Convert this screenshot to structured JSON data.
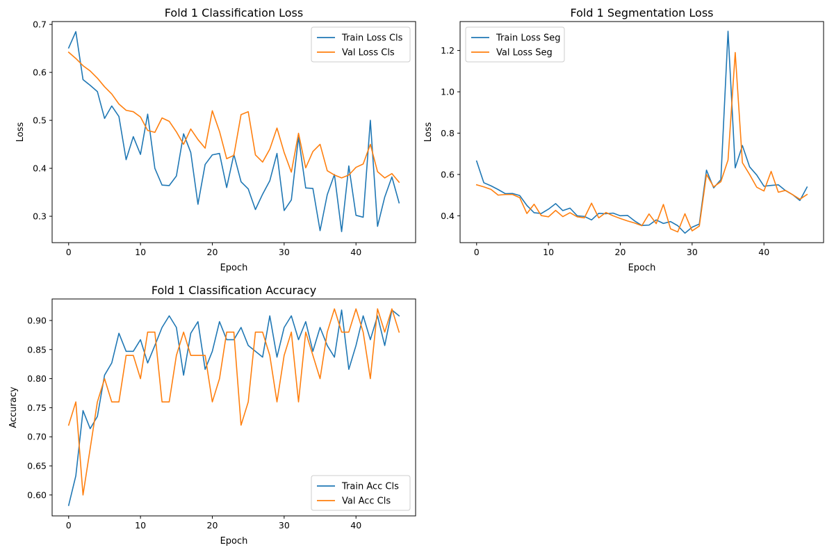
{
  "colors": {
    "train": "#1f77b4",
    "val": "#ff7f0e"
  },
  "chart_data": [
    {
      "type": "line",
      "title": "Fold 1 Classification Loss",
      "xlabel": "Epoch",
      "ylabel": "Loss",
      "xlim": [
        -2.3,
        48.3
      ],
      "ylim": [
        0.245,
        0.706
      ],
      "xticks": [
        0,
        10,
        20,
        30,
        40
      ],
      "yticks": [
        0.3,
        0.4,
        0.5,
        0.6,
        0.7
      ],
      "ytick_labels": [
        "0.3",
        "0.4",
        "0.5",
        "0.6",
        "0.7"
      ],
      "legend_position": "top-right",
      "series": [
        {
          "name": "Train Loss Cls",
          "color": "#1f77b4",
          "values": [
            0.651,
            0.685,
            0.585,
            0.573,
            0.56,
            0.504,
            0.53,
            0.508,
            0.418,
            0.466,
            0.429,
            0.513,
            0.4,
            0.365,
            0.364,
            0.384,
            0.472,
            0.433,
            0.325,
            0.408,
            0.428,
            0.431,
            0.36,
            0.429,
            0.372,
            0.357,
            0.314,
            0.346,
            0.374,
            0.431,
            0.312,
            0.334,
            0.465,
            0.359,
            0.358,
            0.27,
            0.345,
            0.387,
            0.268,
            0.405,
            0.302,
            0.298,
            0.5,
            0.279,
            0.34,
            0.382,
            0.328
          ]
        },
        {
          "name": "Val Loss Cls",
          "color": "#ff7f0e",
          "values": [
            0.642,
            0.629,
            0.614,
            0.603,
            0.588,
            0.57,
            0.555,
            0.534,
            0.521,
            0.518,
            0.507,
            0.479,
            0.475,
            0.505,
            0.498,
            0.476,
            0.45,
            0.482,
            0.46,
            0.442,
            0.52,
            0.477,
            0.42,
            0.427,
            0.512,
            0.518,
            0.428,
            0.413,
            0.44,
            0.484,
            0.433,
            0.392,
            0.473,
            0.401,
            0.435,
            0.45,
            0.395,
            0.386,
            0.38,
            0.386,
            0.402,
            0.409,
            0.45,
            0.393,
            0.38,
            0.389,
            0.371
          ]
        }
      ]
    },
    {
      "type": "line",
      "title": "Fold 1 Segmentation Loss",
      "xlabel": "Epoch",
      "ylabel": "Loss",
      "xlim": [
        -2.3,
        48.3
      ],
      "ylim": [
        0.27,
        1.34
      ],
      "xticks": [
        0,
        10,
        20,
        30,
        40
      ],
      "yticks": [
        0.4,
        0.6,
        0.8,
        1.0,
        1.2
      ],
      "ytick_labels": [
        "0.4",
        "0.6",
        "0.8",
        "1.0",
        "1.2"
      ],
      "legend_position": "top-left",
      "series": [
        {
          "name": "Train Loss Seg",
          "color": "#1f77b4",
          "values": [
            0.665,
            0.56,
            0.545,
            0.527,
            0.507,
            0.508,
            0.498,
            0.45,
            0.415,
            0.411,
            0.432,
            0.459,
            0.425,
            0.437,
            0.4,
            0.397,
            0.38,
            0.412,
            0.41,
            0.413,
            0.4,
            0.402,
            0.375,
            0.353,
            0.355,
            0.38,
            0.363,
            0.372,
            0.352,
            0.316,
            0.345,
            0.36,
            0.621,
            0.535,
            0.575,
            1.293,
            0.632,
            0.74,
            0.637,
            0.597,
            0.543,
            0.547,
            0.55,
            0.522,
            0.502,
            0.474,
            0.539
          ]
        },
        {
          "name": "Val Loss Seg",
          "color": "#ff7f0e",
          "values": [
            0.55,
            0.54,
            0.528,
            0.5,
            0.503,
            0.503,
            0.488,
            0.411,
            0.456,
            0.401,
            0.395,
            0.426,
            0.396,
            0.415,
            0.395,
            0.39,
            0.461,
            0.39,
            0.416,
            0.4,
            0.387,
            0.375,
            0.365,
            0.352,
            0.409,
            0.362,
            0.455,
            0.337,
            0.322,
            0.41,
            0.327,
            0.35,
            0.6,
            0.54,
            0.565,
            0.67,
            1.19,
            0.657,
            0.6,
            0.538,
            0.52,
            0.615,
            0.514,
            0.523,
            0.502,
            0.48,
            0.503
          ]
        }
      ]
    },
    {
      "type": "line",
      "title": "Fold 1 Classification Accuracy",
      "xlabel": "Epoch",
      "ylabel": "Accuracy",
      "xlim": [
        -2.3,
        48.3
      ],
      "ylim": [
        0.564,
        0.937
      ],
      "xticks": [
        0,
        10,
        20,
        30,
        40
      ],
      "yticks": [
        0.6,
        0.65,
        0.7,
        0.75,
        0.8,
        0.85,
        0.9
      ],
      "ytick_labels": [
        "0.60",
        "0.65",
        "0.70",
        "0.75",
        "0.80",
        "0.85",
        "0.90"
      ],
      "legend_position": "bottom-right",
      "series": [
        {
          "name": "Train Acc Cls",
          "color": "#1f77b4",
          "values": [
            0.582,
            0.633,
            0.745,
            0.714,
            0.735,
            0.806,
            0.827,
            0.878,
            0.847,
            0.847,
            0.867,
            0.827,
            0.857,
            0.888,
            0.908,
            0.888,
            0.806,
            0.878,
            0.898,
            0.816,
            0.847,
            0.898,
            0.867,
            0.867,
            0.888,
            0.857,
            0.847,
            0.837,
            0.908,
            0.837,
            0.888,
            0.908,
            0.867,
            0.898,
            0.847,
            0.888,
            0.857,
            0.837,
            0.918,
            0.816,
            0.857,
            0.908,
            0.867,
            0.908,
            0.857,
            0.918,
            0.908
          ]
        },
        {
          "name": "Val Acc Cls",
          "color": "#ff7f0e",
          "values": [
            0.72,
            0.76,
            0.6,
            0.68,
            0.76,
            0.8,
            0.76,
            0.76,
            0.84,
            0.84,
            0.8,
            0.88,
            0.88,
            0.76,
            0.76,
            0.84,
            0.88,
            0.84,
            0.84,
            0.84,
            0.76,
            0.8,
            0.88,
            0.88,
            0.72,
            0.76,
            0.88,
            0.88,
            0.84,
            0.76,
            0.84,
            0.88,
            0.76,
            0.88,
            0.84,
            0.8,
            0.88,
            0.92,
            0.88,
            0.88,
            0.92,
            0.88,
            0.8,
            0.92,
            0.88,
            0.92,
            0.88
          ]
        }
      ]
    }
  ]
}
